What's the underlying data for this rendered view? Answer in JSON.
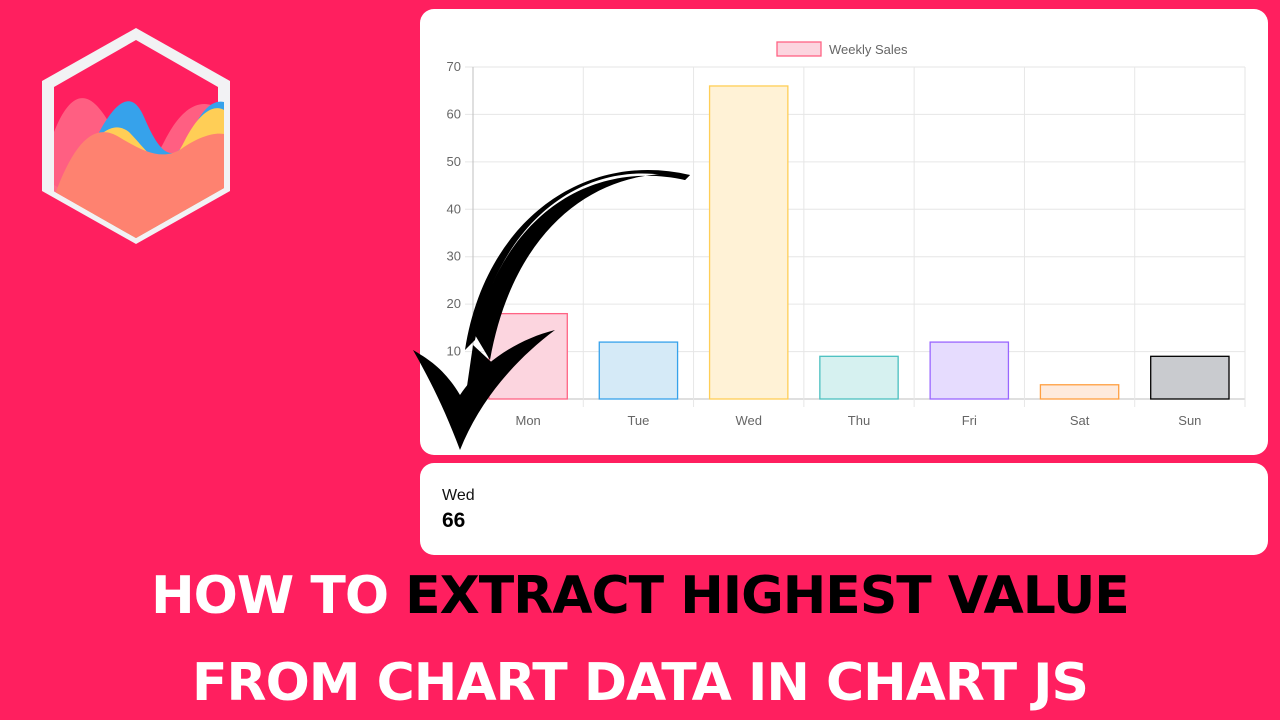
{
  "chart_data": {
    "type": "bar",
    "categories": [
      "Mon",
      "Tue",
      "Wed",
      "Thu",
      "Fri",
      "Sat",
      "Sun"
    ],
    "series": [
      {
        "name": "Weekly Sales",
        "values": [
          18,
          12,
          66,
          9,
          12,
          3,
          9
        ]
      }
    ],
    "ylim": [
      0,
      70
    ],
    "yticks": [
      0,
      10,
      20,
      30,
      40,
      50,
      60,
      70
    ],
    "grid": true,
    "legend": "top-center",
    "bar_fill_colors": [
      "#fcd5df",
      "#d5eaf7",
      "#fff2d6",
      "#d6f1f0",
      "#e6dcfe",
      "#feeadc",
      "#c9cbcf"
    ],
    "bar_border_colors": [
      "#ff6384",
      "#36a2eb",
      "#ffce56",
      "#4bc0c0",
      "#9966ff",
      "#ff9f40",
      "#000000"
    ]
  },
  "legend": {
    "label": "Weekly Sales"
  },
  "result": {
    "label": "Wed",
    "value": "66"
  },
  "headline": {
    "line1_white": "HOW TO ",
    "line1_black": "EXTRACT HIGHEST VALUE",
    "line2": "FROM CHART DATA IN CHART JS"
  },
  "colors": {
    "background": "#ff1f5f",
    "card": "#ffffff",
    "legend_fill": "#fcd5df",
    "legend_border": "#ff6384"
  },
  "icons": {
    "logo": "chartjs-logo-icon",
    "arrow": "curved-arrow-icon"
  }
}
